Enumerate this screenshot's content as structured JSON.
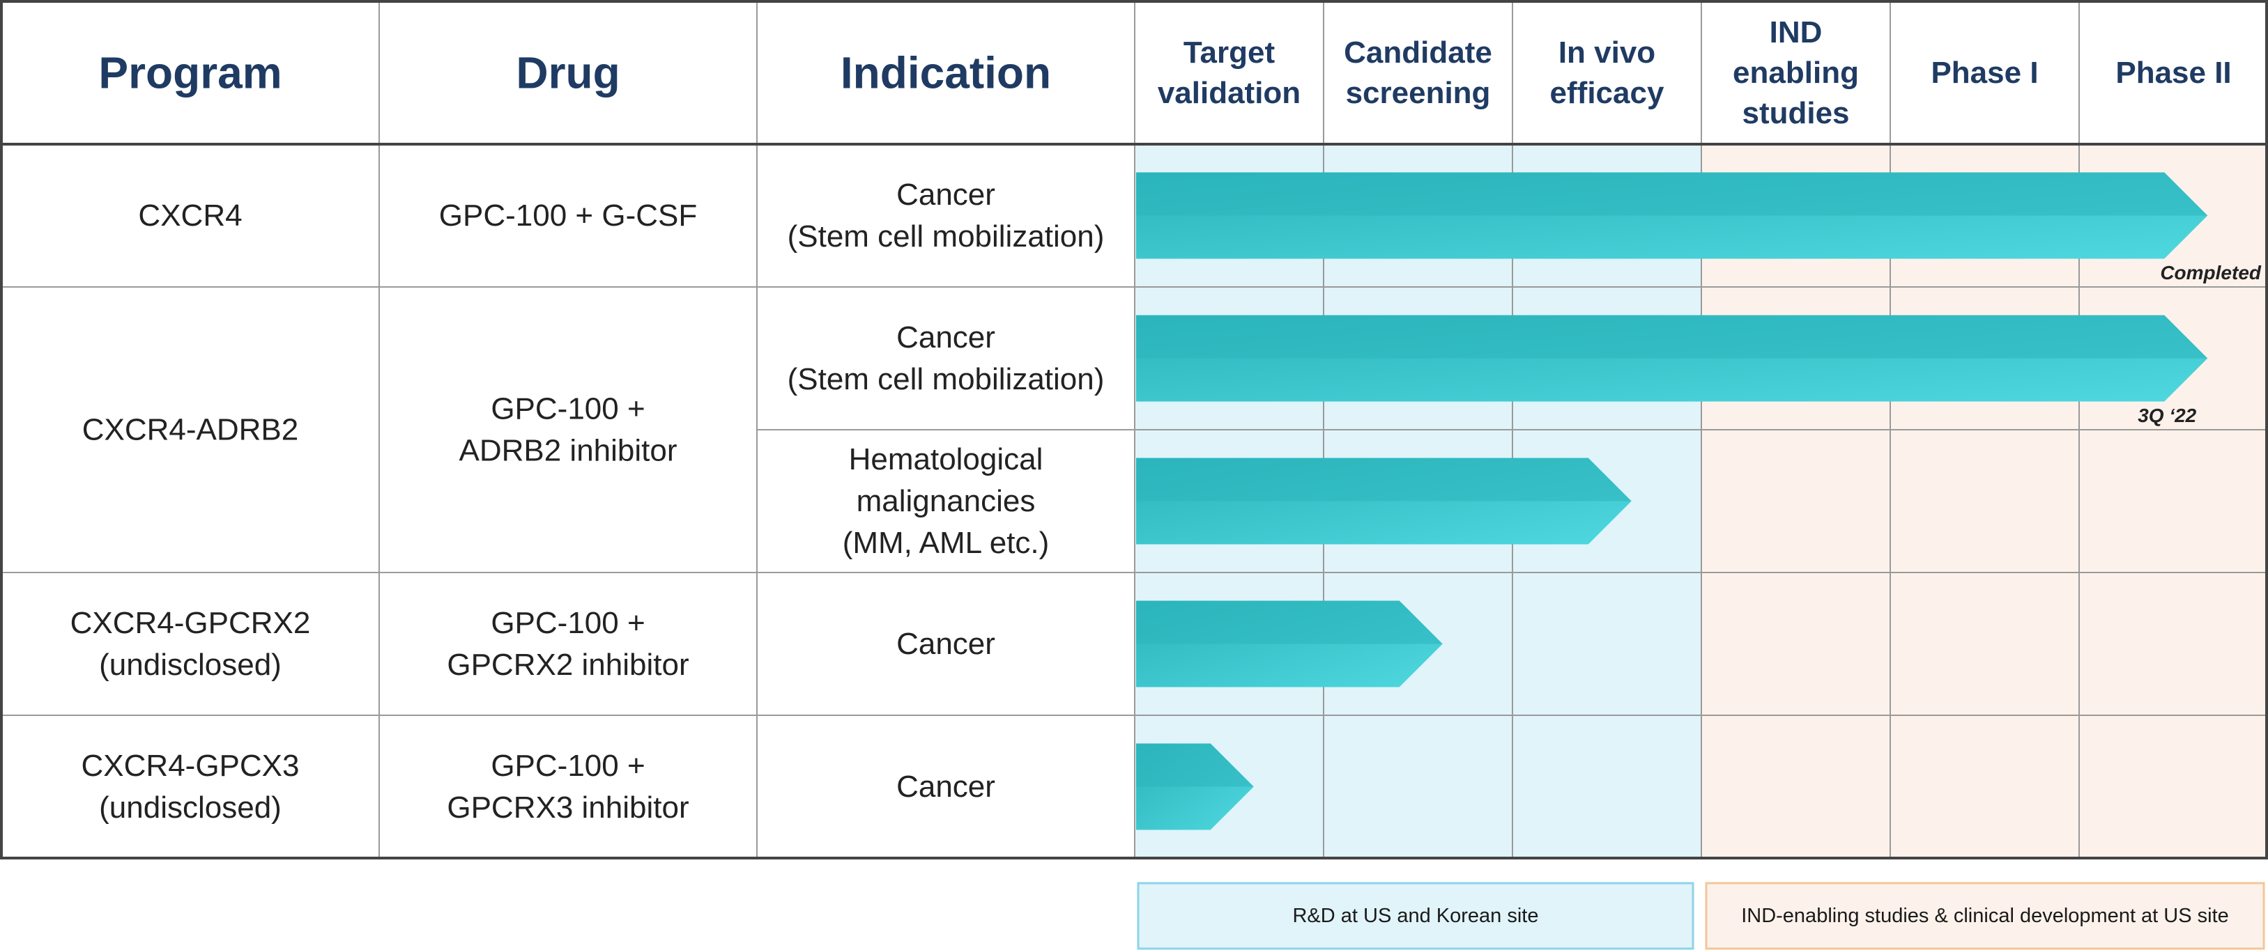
{
  "colors": {
    "rd_zone": "#e0f4fa",
    "clinical_zone": "#fdf2eb",
    "rd_legend_border": "#8fd3e6",
    "clinical_legend_border": "#f3c69a",
    "header_text": "#1f3b63",
    "arrow_top": "#2bb5bb",
    "arrow_bottom": "#4fd8df",
    "arrow_head": "#3bc5cc"
  },
  "table": {
    "headers": {
      "program": "Program",
      "drug": "Drug",
      "indication": "Indication",
      "stages": [
        [
          "Target",
          "validation"
        ],
        [
          "Candidate",
          "screening"
        ],
        [
          "In vivo",
          "efficacy"
        ],
        [
          "IND",
          "enabling",
          "studies"
        ],
        [
          "Phase I"
        ],
        [
          "Phase II"
        ]
      ]
    },
    "programs": [
      {
        "program": [
          "CXCR4"
        ],
        "drug": [
          "GPC-100 + G-CSF"
        ]
      },
      {
        "program": [
          "CXCR4-ADRB2"
        ],
        "drug": [
          "GPC-100 +",
          "ADRB2 inhibitor"
        ]
      },
      {
        "program": [
          "CXCR4-GPCRX2",
          "(undisclosed)"
        ],
        "drug": [
          "GPC-100 +",
          "GPCRX2 inhibitor"
        ]
      },
      {
        "program": [
          "CXCR4-GPCX3",
          "(undisclosed)"
        ],
        "drug": [
          "GPC-100 +",
          "GPCRX3 inhibitor"
        ]
      }
    ]
  },
  "chart_data": {
    "type": "bar",
    "orientation": "horizontal",
    "stages": [
      "Target validation",
      "Candidate screening",
      "In vivo efficacy",
      "IND enabling studies",
      "Phase I",
      "Phase II"
    ],
    "rows": [
      {
        "program": "CXCR4",
        "drug": "GPC-100 + G-CSF",
        "indication": [
          "Cancer",
          "(Stem cell mobilization)"
        ],
        "progress_stages": 5.68,
        "note": "Completed"
      },
      {
        "program": "CXCR4-ADRB2",
        "drug": "GPC-100 + ADRB2 inhibitor",
        "indication": [
          "Cancer",
          "(Stem cell mobilization)"
        ],
        "progress_stages": 5.68,
        "note": "3Q ‘22"
      },
      {
        "program": "CXCR4-ADRB2",
        "drug": "GPC-100 + ADRB2 inhibitor",
        "indication": [
          "Hematological",
          "malignancies",
          "(MM, AML etc.)"
        ],
        "progress_stages": 2.63,
        "note": ""
      },
      {
        "program": "CXCR4-GPCRX2 (undisclosed)",
        "drug": "GPC-100 + GPCRX2 inhibitor",
        "indication": [
          "Cancer"
        ],
        "progress_stages": 1.63,
        "note": ""
      },
      {
        "program": "CXCR4-GPCX3 (undisclosed)",
        "drug": "GPC-100 + GPCRX3 inhibitor",
        "indication": [
          "Cancer"
        ],
        "progress_stages": 0.63,
        "note": ""
      }
    ]
  },
  "legend": {
    "rd": "R&D at US and Korean site",
    "clinical": "IND-enabling studies & clinical development at US site"
  }
}
